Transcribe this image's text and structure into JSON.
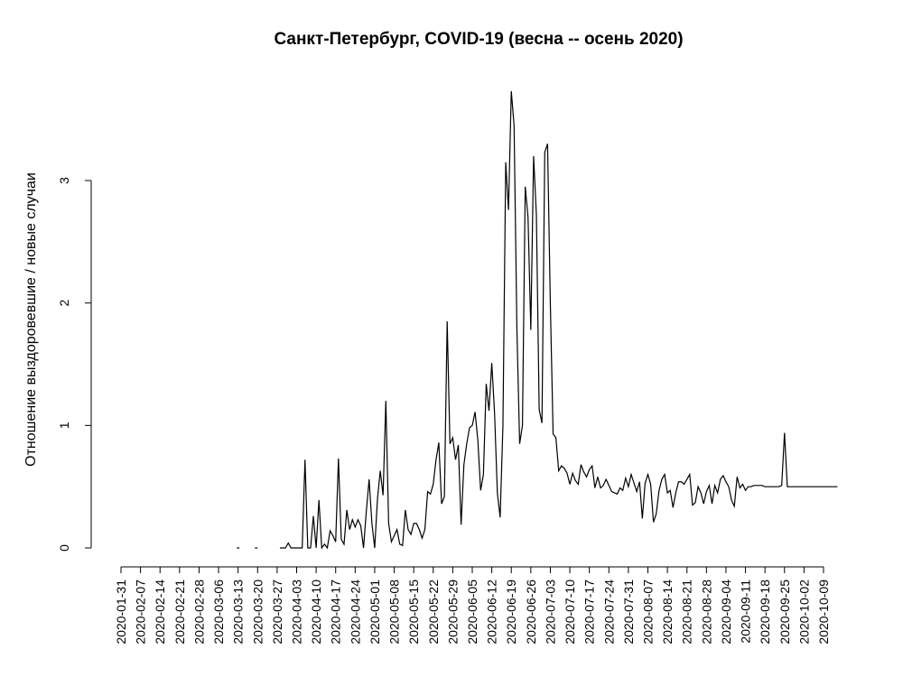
{
  "chart_data": {
    "type": "line",
    "title": "Санкт-Петербург, COVID-19 (весна -- осень 2020)",
    "xlabel": "",
    "ylabel": "Отношение выздоровевшие / новые случаи",
    "xlim": [
      "2020-01-31",
      "2020-10-14"
    ],
    "ylim": [
      0,
      3.7
    ],
    "grid": false,
    "x_ticks": [
      "2020-01-31",
      "2020-02-07",
      "2020-02-14",
      "2020-02-21",
      "2020-02-28",
      "2020-03-06",
      "2020-03-13",
      "2020-03-20",
      "2020-03-27",
      "2020-04-03",
      "2020-04-10",
      "2020-04-17",
      "2020-04-24",
      "2020-05-01",
      "2020-05-08",
      "2020-05-15",
      "2020-05-22",
      "2020-05-29",
      "2020-06-05",
      "2020-06-12",
      "2020-06-19",
      "2020-06-26",
      "2020-07-03",
      "2020-07-10",
      "2020-07-17",
      "2020-07-24",
      "2020-07-31",
      "2020-08-07",
      "2020-08-14",
      "2020-08-21",
      "2020-08-28",
      "2020-09-04",
      "2020-09-11",
      "2020-09-18",
      "2020-09-25",
      "2020-10-02",
      "2020-10-09"
    ],
    "y_ticks": [
      0,
      1,
      2,
      3
    ],
    "series": [
      {
        "segments": [
          [
            [
              "2020-03-13",
              0
            ]
          ],
          [
            [
              "2020-03-19",
              0
            ],
            [
              "2020-03-20",
              0
            ]
          ],
          [
            [
              "2020-03-28",
              0
            ],
            [
              "2020-03-29",
              0
            ],
            [
              "2020-03-30",
              0
            ],
            [
              "2020-03-31",
              0.04
            ],
            [
              "2020-04-01",
              0
            ],
            [
              "2020-04-02",
              0
            ],
            [
              "2020-04-03",
              0
            ],
            [
              "2020-04-04",
              0
            ],
            [
              "2020-04-05",
              0
            ],
            [
              "2020-04-06",
              0.72
            ],
            [
              "2020-04-07",
              0
            ],
            [
              "2020-04-08",
              0
            ],
            [
              "2020-04-09",
              0.26
            ],
            [
              "2020-04-10",
              0
            ],
            [
              "2020-04-11",
              0.39
            ],
            [
              "2020-04-12",
              0
            ],
            [
              "2020-04-13",
              0.03
            ],
            [
              "2020-04-14",
              0
            ],
            [
              "2020-04-15",
              0.14
            ],
            [
              "2020-04-16",
              0.1
            ],
            [
              "2020-04-17",
              0.05
            ],
            [
              "2020-04-18",
              0.73
            ],
            [
              "2020-04-19",
              0.07
            ],
            [
              "2020-04-20",
              0.03
            ],
            [
              "2020-04-21",
              0.31
            ],
            [
              "2020-04-22",
              0.15
            ],
            [
              "2020-04-23",
              0.23
            ],
            [
              "2020-04-24",
              0.17
            ],
            [
              "2020-04-25",
              0.23
            ],
            [
              "2020-04-26",
              0.18
            ],
            [
              "2020-04-27",
              0
            ],
            [
              "2020-04-28",
              0.3
            ],
            [
              "2020-04-29",
              0.56
            ],
            [
              "2020-04-30",
              0.2
            ],
            [
              "2020-05-01",
              0
            ],
            [
              "2020-05-02",
              0.4
            ],
            [
              "2020-05-03",
              0.63
            ],
            [
              "2020-05-04",
              0.43
            ],
            [
              "2020-05-05",
              1.2
            ],
            [
              "2020-05-06",
              0.2
            ],
            [
              "2020-05-07",
              0.05
            ],
            [
              "2020-05-08",
              0.1
            ],
            [
              "2020-05-09",
              0.15
            ],
            [
              "2020-05-10",
              0.03
            ],
            [
              "2020-05-11",
              0.02
            ],
            [
              "2020-05-12",
              0.31
            ],
            [
              "2020-05-13",
              0.15
            ],
            [
              "2020-05-14",
              0.11
            ],
            [
              "2020-05-15",
              0.2
            ],
            [
              "2020-05-16",
              0.2
            ],
            [
              "2020-05-17",
              0.15
            ],
            [
              "2020-05-18",
              0.08
            ],
            [
              "2020-05-19",
              0.15
            ],
            [
              "2020-05-20",
              0.46
            ],
            [
              "2020-05-21",
              0.44
            ],
            [
              "2020-05-22",
              0.52
            ],
            [
              "2020-05-23",
              0.72
            ],
            [
              "2020-05-24",
              0.86
            ],
            [
              "2020-05-25",
              0.36
            ],
            [
              "2020-05-26",
              0.42
            ],
            [
              "2020-05-27",
              1.85
            ],
            [
              "2020-05-28",
              0.85
            ],
            [
              "2020-05-29",
              0.9
            ],
            [
              "2020-05-30",
              0.72
            ],
            [
              "2020-05-31",
              0.84
            ],
            [
              "2020-06-01",
              0.19
            ],
            [
              "2020-06-02",
              0.68
            ],
            [
              "2020-06-03",
              0.85
            ],
            [
              "2020-06-04",
              0.98
            ],
            [
              "2020-06-05",
              1.0
            ],
            [
              "2020-06-06",
              1.11
            ],
            [
              "2020-06-07",
              0.88
            ],
            [
              "2020-06-08",
              0.47
            ],
            [
              "2020-06-09",
              0.6
            ],
            [
              "2020-06-10",
              1.34
            ],
            [
              "2020-06-11",
              1.12
            ],
            [
              "2020-06-12",
              1.51
            ],
            [
              "2020-06-13",
              1.1
            ],
            [
              "2020-06-14",
              0.45
            ],
            [
              "2020-06-15",
              0.25
            ],
            [
              "2020-06-16",
              1.0
            ],
            [
              "2020-06-17",
              3.15
            ],
            [
              "2020-06-18",
              2.76
            ],
            [
              "2020-06-19",
              3.73
            ],
            [
              "2020-06-20",
              3.45
            ],
            [
              "2020-06-21",
              1.8
            ],
            [
              "2020-06-22",
              0.85
            ],
            [
              "2020-06-23",
              1.0
            ],
            [
              "2020-06-24",
              2.95
            ],
            [
              "2020-06-25",
              2.7
            ],
            [
              "2020-06-26",
              1.78
            ],
            [
              "2020-06-27",
              3.2
            ],
            [
              "2020-06-28",
              2.72
            ],
            [
              "2020-06-29",
              1.13
            ],
            [
              "2020-06-30",
              1.02
            ],
            [
              "2020-07-01",
              3.23
            ],
            [
              "2020-07-02",
              3.3
            ],
            [
              "2020-07-03",
              2.0
            ],
            [
              "2020-07-04",
              0.93
            ],
            [
              "2020-07-05",
              0.9
            ],
            [
              "2020-07-06",
              0.63
            ],
            [
              "2020-07-07",
              0.67
            ],
            [
              "2020-07-08",
              0.65
            ],
            [
              "2020-07-09",
              0.61
            ],
            [
              "2020-07-10",
              0.52
            ],
            [
              "2020-07-11",
              0.61
            ],
            [
              "2020-07-12",
              0.55
            ],
            [
              "2020-07-13",
              0.52
            ],
            [
              "2020-07-14",
              0.68
            ],
            [
              "2020-07-15",
              0.62
            ],
            [
              "2020-07-16",
              0.58
            ],
            [
              "2020-07-17",
              0.64
            ],
            [
              "2020-07-18",
              0.67
            ],
            [
              "2020-07-19",
              0.49
            ],
            [
              "2020-07-20",
              0.58
            ],
            [
              "2020-07-21",
              0.49
            ],
            [
              "2020-07-22",
              0.51
            ],
            [
              "2020-07-23",
              0.56
            ],
            [
              "2020-07-24",
              0.51
            ],
            [
              "2020-07-25",
              0.46
            ],
            [
              "2020-07-26",
              0.45
            ],
            [
              "2020-07-27",
              0.44
            ],
            [
              "2020-07-28",
              0.49
            ],
            [
              "2020-07-29",
              0.47
            ],
            [
              "2020-07-30",
              0.57
            ],
            [
              "2020-07-31",
              0.5
            ],
            [
              "2020-08-01",
              0.6
            ],
            [
              "2020-08-02",
              0.53
            ],
            [
              "2020-08-03",
              0.46
            ],
            [
              "2020-08-04",
              0.54
            ],
            [
              "2020-08-05",
              0.24
            ],
            [
              "2020-08-06",
              0.53
            ],
            [
              "2020-08-07",
              0.6
            ],
            [
              "2020-08-08",
              0.52
            ],
            [
              "2020-08-09",
              0.21
            ],
            [
              "2020-08-10",
              0.28
            ],
            [
              "2020-08-11",
              0.47
            ],
            [
              "2020-08-12",
              0.56
            ],
            [
              "2020-08-13",
              0.6
            ],
            [
              "2020-08-14",
              0.45
            ],
            [
              "2020-08-15",
              0.47
            ],
            [
              "2020-08-16",
              0.33
            ],
            [
              "2020-08-17",
              0.45
            ],
            [
              "2020-08-18",
              0.54
            ],
            [
              "2020-08-19",
              0.54
            ],
            [
              "2020-08-20",
              0.52
            ],
            [
              "2020-08-21",
              0.56
            ],
            [
              "2020-08-22",
              0.6
            ],
            [
              "2020-08-23",
              0.35
            ],
            [
              "2020-08-24",
              0.37
            ],
            [
              "2020-08-25",
              0.5
            ],
            [
              "2020-08-26",
              0.45
            ],
            [
              "2020-08-27",
              0.36
            ],
            [
              "2020-08-28",
              0.46
            ],
            [
              "2020-08-29",
              0.51
            ],
            [
              "2020-08-30",
              0.36
            ],
            [
              "2020-08-31",
              0.51
            ],
            [
              "2020-09-01",
              0.45
            ],
            [
              "2020-09-02",
              0.56
            ],
            [
              "2020-09-03",
              0.59
            ],
            [
              "2020-09-04",
              0.54
            ],
            [
              "2020-09-05",
              0.5
            ],
            [
              "2020-09-06",
              0.39
            ],
            [
              "2020-09-07",
              0.34
            ],
            [
              "2020-09-08",
              0.58
            ],
            [
              "2020-09-09",
              0.49
            ],
            [
              "2020-09-10",
              0.52
            ],
            [
              "2020-09-11",
              0.47
            ],
            [
              "2020-09-12",
              0.5
            ],
            [
              "2020-09-13",
              0.5
            ],
            [
              "2020-09-14",
              0.51
            ],
            [
              "2020-09-15",
              0.51
            ],
            [
              "2020-09-16",
              0.51
            ],
            [
              "2020-09-17",
              0.51
            ],
            [
              "2020-09-18",
              0.5
            ],
            [
              "2020-09-19",
              0.5
            ],
            [
              "2020-09-20",
              0.5
            ],
            [
              "2020-09-21",
              0.5
            ],
            [
              "2020-09-22",
              0.5
            ],
            [
              "2020-09-23",
              0.5
            ],
            [
              "2020-09-24",
              0.51
            ],
            [
              "2020-09-25",
              0.94
            ],
            [
              "2020-09-26",
              0.5
            ],
            [
              "2020-09-27",
              0.5
            ],
            [
              "2020-09-28",
              0.5
            ],
            [
              "2020-09-29",
              0.5
            ],
            [
              "2020-09-30",
              0.5
            ],
            [
              "2020-10-01",
              0.5
            ],
            [
              "2020-10-02",
              0.5
            ],
            [
              "2020-10-03",
              0.5
            ],
            [
              "2020-10-04",
              0.5
            ],
            [
              "2020-10-05",
              0.5
            ],
            [
              "2020-10-06",
              0.5
            ],
            [
              "2020-10-07",
              0.5
            ],
            [
              "2020-10-08",
              0.5
            ],
            [
              "2020-10-09",
              0.5
            ],
            [
              "2020-10-10",
              0.5
            ],
            [
              "2020-10-11",
              0.5
            ],
            [
              "2020-10-12",
              0.5
            ],
            [
              "2020-10-13",
              0.5
            ],
            [
              "2020-10-14",
              0.5
            ]
          ]
        ]
      }
    ]
  }
}
